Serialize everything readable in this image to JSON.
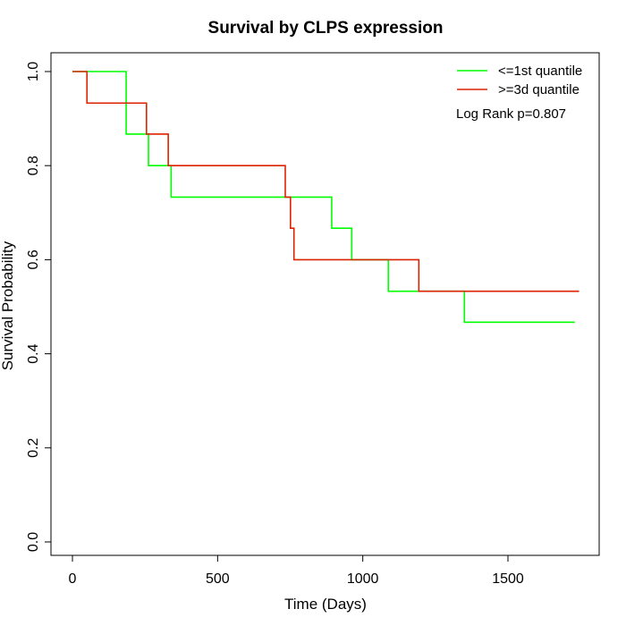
{
  "chart_data": {
    "type": "line",
    "subtype": "step",
    "title": "Survival by CLPS expression",
    "xlabel": "Time (Days)",
    "ylabel": "Survival Probability",
    "xlim": [
      0,
      1750
    ],
    "ylim": [
      0,
      1
    ],
    "xticks": [
      0,
      500,
      1000,
      1500
    ],
    "xtick_labels": [
      "0",
      "500",
      "1000",
      "1500"
    ],
    "yticks": [
      0,
      0.2,
      0.4,
      0.6,
      0.8,
      1.0
    ],
    "ytick_labels": [
      "0.0",
      "0.2",
      "0.4",
      "0.6",
      "0.8",
      "1.0"
    ],
    "grid": false,
    "legend_position": "top-right",
    "annotation": "Log Rank p=0.807",
    "series": [
      {
        "name": "<=1st quantile",
        "color": "#00ff00",
        "x": [
          0,
          170,
          185,
          262,
          340,
          893,
          962,
          1088,
          1350,
          1730
        ],
        "y": [
          1.0,
          1.0,
          0.867,
          0.8,
          0.733,
          0.667,
          0.6,
          0.533,
          0.467,
          0.467
        ]
      },
      {
        "name": ">=3d quantile",
        "color": "#dd2200",
        "x": [
          0,
          50,
          255,
          330,
          733,
          751,
          763,
          1193,
          1745
        ],
        "y": [
          1.0,
          0.933,
          0.867,
          0.8,
          0.733,
          0.667,
          0.6,
          0.533,
          0.533
        ]
      }
    ]
  }
}
